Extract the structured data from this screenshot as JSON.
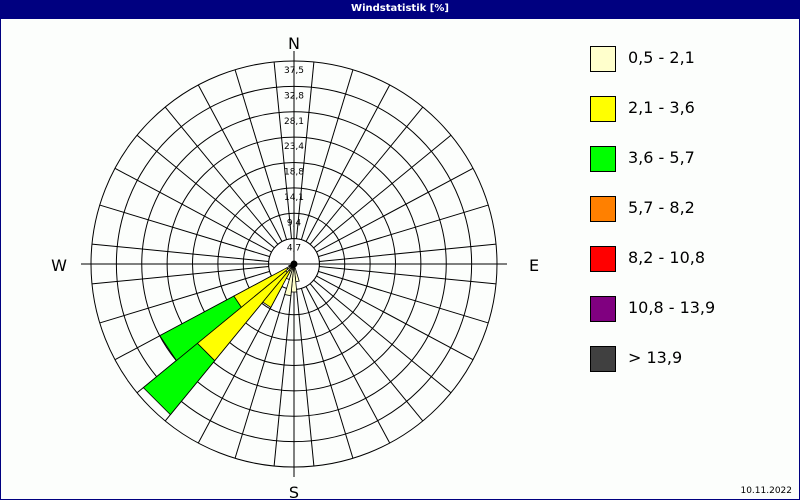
{
  "title": "Windstatistik [%]",
  "date": "10.11.2022",
  "chart_data": {
    "type": "windrose",
    "title": "Windstatistik [%]",
    "directions_count": 32,
    "compass_labels": {
      "N": "N",
      "E": "E",
      "S": "S",
      "W": "W"
    },
    "radial_ticks": [
      "4,7",
      "9,4",
      "14,1",
      "18,8",
      "23,4",
      "28,1",
      "32,8",
      "37,5"
    ],
    "radial_max": 37.5,
    "grid": true,
    "legend_placement": "right",
    "classes": [
      {
        "label": "0,5 - 2,1",
        "color": "#ffffcc"
      },
      {
        "label": "2,1 - 3,6",
        "color": "#ffff00"
      },
      {
        "label": "3,6 - 5,7",
        "color": "#00ff00"
      },
      {
        "label": "5,7 - 8,2",
        "color": "#ff8000"
      },
      {
        "label": "8,2 - 10,8",
        "color": "#ff0000"
      },
      {
        "label": "10,8 - 13,9",
        "color": "#800080"
      },
      {
        "label": " > 13,9",
        "color": "#404040"
      }
    ],
    "sectors": [
      {
        "direction_deg": 168.75,
        "values": [
          3.3,
          0,
          0,
          0,
          0,
          0,
          0
        ]
      },
      {
        "direction_deg": 180,
        "values": [
          5.2,
          0,
          0,
          0,
          0,
          0,
          0
        ]
      },
      {
        "direction_deg": 191.25,
        "values": [
          5.9,
          0,
          0,
          0,
          0,
          0,
          0
        ]
      },
      {
        "direction_deg": 202.5,
        "values": [
          3.0,
          0,
          0,
          0,
          0,
          0,
          0
        ]
      },
      {
        "direction_deg": 213.75,
        "values": [
          1.5,
          7.6,
          0,
          0,
          0,
          0,
          0
        ]
      },
      {
        "direction_deg": 225,
        "values": [
          2.0,
          21.1,
          12.9,
          0,
          0,
          0,
          0
        ]
      },
      {
        "direction_deg": 236.25,
        "values": [
          1.5,
          11.1,
          15.5,
          0,
          0,
          0,
          0
        ]
      },
      {
        "direction_deg": 247.5,
        "values": [
          1.0,
          0,
          0,
          0,
          0,
          0,
          0
        ]
      }
    ]
  }
}
